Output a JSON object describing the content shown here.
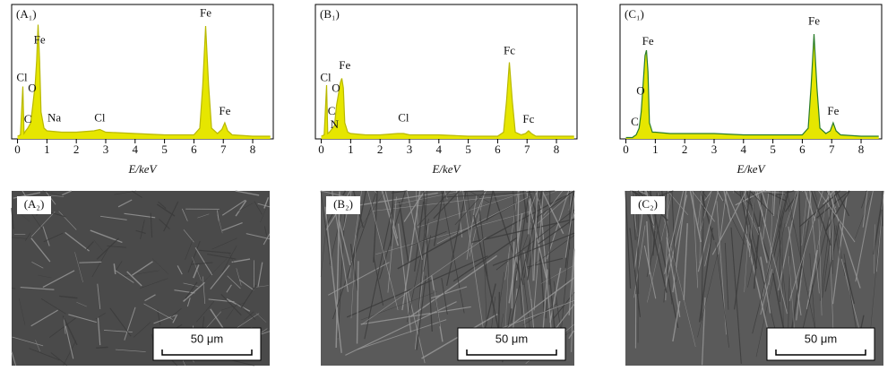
{
  "chart_data": [
    {
      "type": "area",
      "label": "(A₁)",
      "xlabel": "E/keV",
      "color": "#e6e600",
      "line_color": "#b8b800",
      "x": [
        0,
        0.1,
        0.18,
        0.22,
        0.28,
        0.35,
        0.45,
        0.52,
        0.6,
        0.65,
        0.7,
        0.75,
        0.8,
        0.9,
        1.0,
        1.5,
        2,
        2.6,
        2.8,
        3,
        4,
        5,
        6,
        6.2,
        6.3,
        6.4,
        6.5,
        6.6,
        6.8,
        6.95,
        7.05,
        7.15,
        7.3,
        8,
        8.6
      ],
      "values": [
        2,
        3,
        39,
        4,
        6,
        8,
        12,
        25,
        40,
        58,
        85,
        58,
        20,
        8,
        6,
        5,
        5,
        6,
        7,
        5,
        4,
        3,
        3,
        8,
        40,
        84,
        40,
        8,
        4,
        7,
        12,
        6,
        3,
        2,
        2
      ],
      "xlim": [
        -0.2,
        8.7
      ],
      "ylim": [
        0,
        100
      ],
      "xticks": [
        0,
        1,
        2,
        3,
        4,
        5,
        6,
        7,
        8
      ],
      "annotations": [
        {
          "text": "Cl",
          "x": 0.15,
          "y": 45
        },
        {
          "text": "O",
          "x": 0.5,
          "y": 37
        },
        {
          "text": "C",
          "x": 0.35,
          "y": 14
        },
        {
          "text": "Fe",
          "x": 0.75,
          "y": 73
        },
        {
          "text": "Na",
          "x": 1.25,
          "y": 15
        },
        {
          "text": "Cl",
          "x": 2.8,
          "y": 15
        },
        {
          "text": "Fe",
          "x": 6.4,
          "y": 93
        },
        {
          "text": "Fe",
          "x": 7.05,
          "y": 20
        }
      ]
    },
    {
      "type": "area",
      "label": "(B₁)",
      "xlabel": "E/keV",
      "color": "#e6e600",
      "line_color": "#b8b800",
      "x": [
        0,
        0.1,
        0.18,
        0.22,
        0.28,
        0.35,
        0.45,
        0.52,
        0.6,
        0.65,
        0.7,
        0.75,
        0.8,
        0.9,
        1.0,
        1.5,
        2,
        2.6,
        2.8,
        3,
        4,
        5,
        6,
        6.2,
        6.3,
        6.4,
        6.5,
        6.6,
        6.8,
        6.95,
        7.05,
        7.15,
        7.3,
        8,
        8.6
      ],
      "values": [
        2,
        3,
        40,
        4,
        5,
        7,
        10,
        25,
        35,
        42,
        45,
        38,
        12,
        5,
        4,
        3,
        3,
        4,
        4,
        3,
        3,
        2,
        2,
        5,
        28,
        57,
        28,
        5,
        3,
        4,
        6,
        4,
        2,
        2,
        2
      ],
      "xlim": [
        -0.2,
        8.7
      ],
      "ylim": [
        0,
        100
      ],
      "xticks": [
        0,
        1,
        2,
        3,
        4,
        5,
        6,
        7,
        8
      ],
      "annotations": [
        {
          "text": "Cl",
          "x": 0.15,
          "y": 45
        },
        {
          "text": "O",
          "x": 0.5,
          "y": 37
        },
        {
          "text": "C",
          "x": 0.35,
          "y": 20
        },
        {
          "text": "N",
          "x": 0.45,
          "y": 10
        },
        {
          "text": "Fe",
          "x": 0.8,
          "y": 54
        },
        {
          "text": "Cl",
          "x": 2.8,
          "y": 15
        },
        {
          "text": "Fc",
          "x": 6.4,
          "y": 65
        },
        {
          "text": "Fc",
          "x": 7.05,
          "y": 14
        }
      ]
    },
    {
      "type": "area",
      "label": "(C₁)",
      "xlabel": "E/keV",
      "color": "#e6e600",
      "line_color": "#2a7d2a",
      "x": [
        0,
        0.1,
        0.18,
        0.22,
        0.28,
        0.35,
        0.45,
        0.52,
        0.6,
        0.65,
        0.7,
        0.75,
        0.8,
        0.9,
        1.0,
        1.5,
        2,
        2.6,
        2.8,
        3,
        4,
        5,
        6,
        6.2,
        6.3,
        6.4,
        6.5,
        6.6,
        6.8,
        6.95,
        7.05,
        7.15,
        7.3,
        8,
        8.6
      ],
      "values": [
        1,
        1,
        1,
        1,
        2,
        3,
        8,
        20,
        45,
        62,
        66,
        50,
        12,
        5,
        5,
        4,
        4,
        4,
        4,
        4,
        3,
        3,
        3,
        8,
        40,
        78,
        38,
        8,
        4,
        6,
        12,
        6,
        3,
        2,
        2
      ],
      "xlim": [
        -0.2,
        8.7
      ],
      "ylim": [
        0,
        100
      ],
      "xticks": [
        0,
        1,
        2,
        3,
        4,
        5,
        6,
        7,
        8
      ],
      "annotations": [
        {
          "text": "C",
          "x": 0.3,
          "y": 12
        },
        {
          "text": "O",
          "x": 0.5,
          "y": 35
        },
        {
          "text": "Fe",
          "x": 0.75,
          "y": 72
        },
        {
          "text": "Fe",
          "x": 6.4,
          "y": 87
        },
        {
          "text": "Fe",
          "x": 7.05,
          "y": 20
        }
      ]
    }
  ],
  "images": [
    {
      "label": "(A₂)",
      "scale_bar": "50 μm"
    },
    {
      "label": "(B₂)",
      "scale_bar": "50 μm"
    },
    {
      "label": "(C₂)",
      "scale_bar": "50 μm"
    }
  ]
}
